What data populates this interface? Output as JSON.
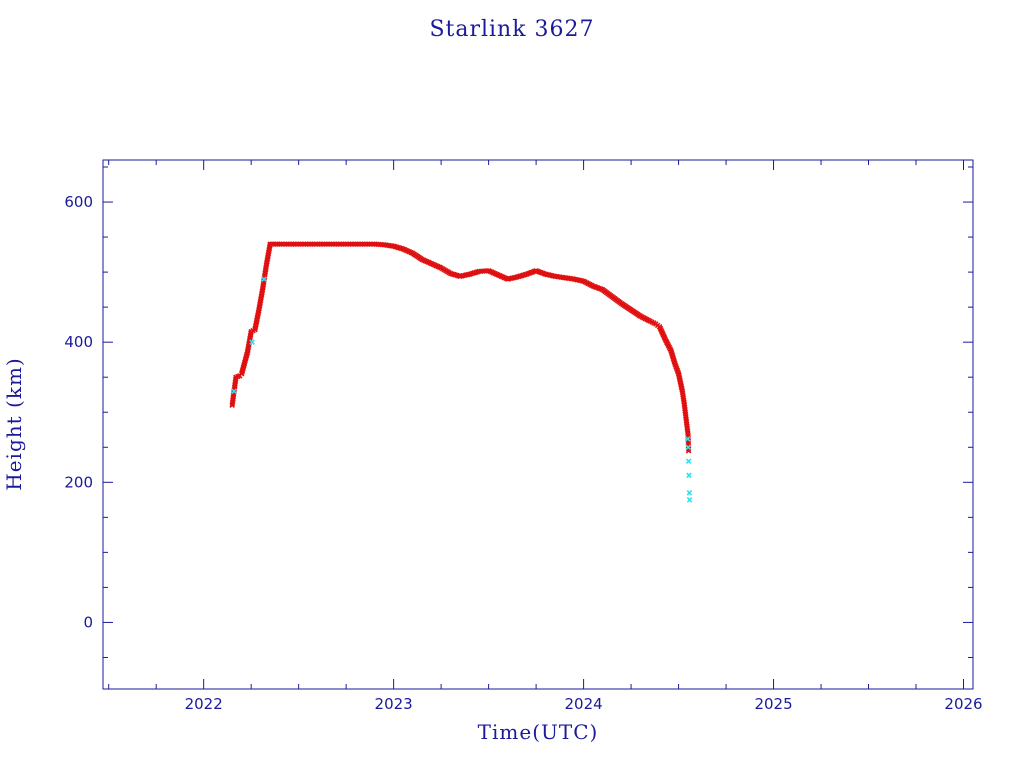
{
  "chart_data": {
    "type": "scatter",
    "title": "Starlink 3627",
    "xlabel": "Time(UTC)",
    "ylabel": "Height (km)",
    "xlim": [
      2021.47,
      2026.05
    ],
    "ylim": [
      -95,
      660
    ],
    "xticks": [
      2022,
      2023,
      2024,
      2025,
      2026
    ],
    "xtick_labels": [
      "2022",
      "2023",
      "2024",
      "2025",
      "2026"
    ],
    "yticks": [
      0,
      200,
      400,
      600
    ],
    "ytick_labels": [
      "0",
      "200",
      "400",
      "600"
    ],
    "grid": false,
    "colors": {
      "axis": "#1a1a9a",
      "primary": "#e01010",
      "secondary": "#30e0f0"
    },
    "series": [
      {
        "color": "#e01010",
        "marker": "x",
        "x": [
          2022.15,
          2022.17,
          2022.19,
          2022.2,
          2022.23,
          2022.25,
          2022.27,
          2022.29,
          2022.31,
          2022.33,
          2022.35,
          2022.4,
          2022.5,
          2022.6,
          2022.7,
          2022.8,
          2022.9,
          2022.95,
          2023.0,
          2023.05,
          2023.1,
          2023.15,
          2023.2,
          2023.25,
          2023.3,
          2023.35,
          2023.4,
          2023.45,
          2023.5,
          2023.55,
          2023.6,
          2023.65,
          2023.7,
          2023.75,
          2023.8,
          2023.85,
          2023.9,
          2023.95,
          2024.0,
          2024.05,
          2024.1,
          2024.15,
          2024.2,
          2024.25,
          2024.3,
          2024.35,
          2024.38,
          2024.4,
          2024.43,
          2024.46,
          2024.48,
          2024.5,
          2024.52,
          2024.53,
          2024.54,
          2024.55,
          2024.553
        ],
        "y": [
          310,
          350,
          352,
          355,
          385,
          415,
          418,
          445,
          475,
          510,
          540,
          540,
          540,
          540,
          540,
          540,
          540,
          539,
          537,
          533,
          527,
          518,
          512,
          506,
          498,
          494,
          497,
          501,
          502,
          496,
          490,
          493,
          497,
          502,
          497,
          494,
          492,
          490,
          487,
          480,
          475,
          465,
          455,
          446,
          437,
          430,
          426,
          422,
          404,
          388,
          370,
          355,
          330,
          312,
          290,
          268,
          245
        ]
      },
      {
        "color": "#30e0f0",
        "marker": "x",
        "x": [
          2022.16,
          2022.255,
          2022.318,
          2024.548,
          2024.551,
          2024.553,
          2024.555,
          2024.557,
          2024.558
        ],
        "y": [
          330,
          400,
          490,
          262,
          250,
          230,
          210,
          185,
          175
        ]
      }
    ]
  }
}
